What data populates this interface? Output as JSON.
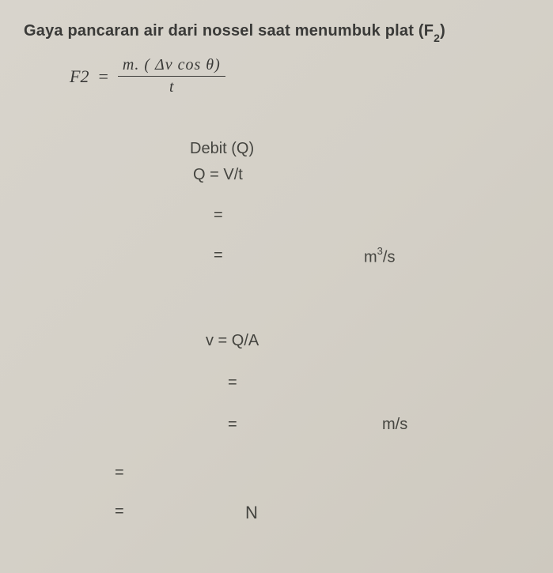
{
  "title": {
    "text_before": "Gaya pancaran air dari nossel saat menumbuk plat (F",
    "subscript": "2",
    "text_after": ")"
  },
  "formula_f2": {
    "lhs": "F2",
    "equals": "=",
    "numerator": "m. ( Δv cos θ)",
    "denominator": "t"
  },
  "debit": {
    "heading": "Debit (Q)",
    "formula": "Q = V/t",
    "eq1": "=",
    "eq2": "=",
    "unit_base": "m",
    "unit_sup": "3",
    "unit_suffix": "/s"
  },
  "velocity": {
    "formula": "v = Q/A",
    "eq1": "=",
    "eq2": "=",
    "unit": "m/s"
  },
  "bottom": {
    "eq1": "=",
    "eq2": "=",
    "unit": "N"
  },
  "colors": {
    "text": "#3a3a38",
    "background_start": "#d8d4cc",
    "background_end": "#cec9bf"
  }
}
